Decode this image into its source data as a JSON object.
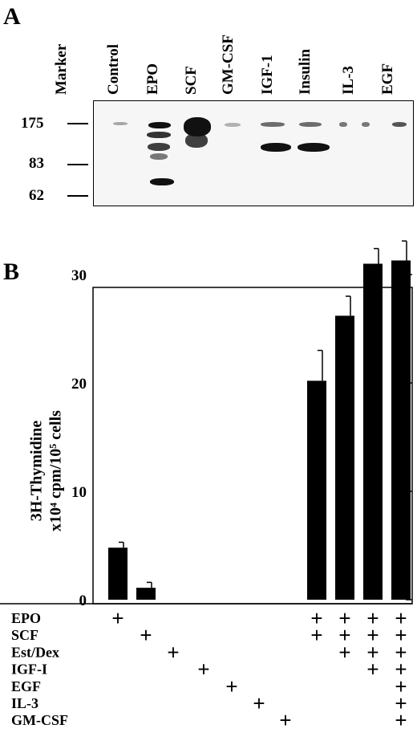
{
  "panelA": {
    "letter": "A",
    "marker_header": "Marker",
    "lanes": [
      "Control",
      "EPO",
      "SCF",
      "GM-CSF",
      "IGF-1",
      "Insulin",
      "IL-3",
      "EGF"
    ],
    "markers": [
      "175",
      "83",
      "62"
    ]
  },
  "panelB": {
    "letter": "B",
    "ylabel_line1": "3H-Thymidine",
    "ylabel_line2": "x10⁴ cpm/10⁵ cells"
  },
  "chart_data": {
    "type": "bar",
    "ylabel": "3H-Thymidine x10^4 cpm/10^5 cells",
    "ylim": [
      0,
      35
    ],
    "yticks": [
      0,
      10,
      20,
      30
    ],
    "values": [
      4.8,
      1.1,
      0,
      0,
      0,
      0,
      0,
      20.2,
      26.2,
      31.0,
      31.3
    ],
    "errors": [
      0.5,
      0.5,
      0,
      0,
      0,
      0,
      0,
      2.8,
      1.8,
      1.4,
      1.8
    ],
    "conditions": [
      "EPO",
      "SCF",
      "Est/Dex",
      "IGF-I",
      "EGF",
      "IL-3",
      "GM-CSF"
    ],
    "matrix": [
      [
        1,
        0,
        0,
        0,
        0,
        0,
        0,
        1,
        1,
        1,
        1
      ],
      [
        0,
        1,
        0,
        0,
        0,
        0,
        0,
        1,
        1,
        1,
        1
      ],
      [
        0,
        0,
        1,
        0,
        0,
        0,
        0,
        0,
        1,
        1,
        1
      ],
      [
        0,
        0,
        0,
        1,
        0,
        0,
        0,
        0,
        0,
        1,
        1
      ],
      [
        0,
        0,
        0,
        0,
        1,
        0,
        0,
        0,
        0,
        0,
        1
      ],
      [
        0,
        0,
        0,
        0,
        0,
        1,
        0,
        0,
        0,
        0,
        1
      ],
      [
        0,
        0,
        0,
        0,
        0,
        0,
        1,
        0,
        0,
        0,
        1
      ]
    ],
    "plus_symbol": "+",
    "grid": false,
    "color": "#000000"
  }
}
